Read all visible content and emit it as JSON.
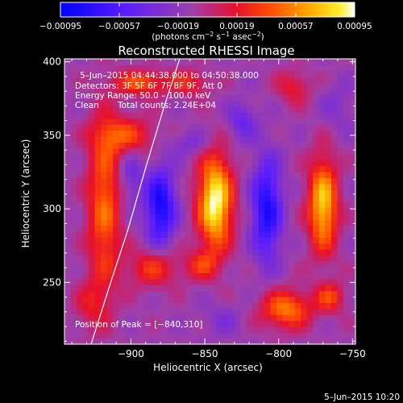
{
  "chart_data": {
    "type": "heatmap",
    "title": "Reconstructed RHESSI Image",
    "xlabel": "Heliocentric X (arcsec)",
    "ylabel": "Heliocentric Y (arcsec)",
    "xlim": [
      -945,
      -748
    ],
    "ylim": [
      208,
      402
    ],
    "x_ticks": [
      -900,
      -850,
      -800,
      -750
    ],
    "x_tick_labels": [
      "−900",
      "−850",
      "−800",
      "−750"
    ],
    "y_ticks": [
      250,
      300,
      350,
      400
    ],
    "y_tick_labels": [
      "250",
      "300",
      "350",
      "400"
    ],
    "colorbar": {
      "range": [
        -0.00095,
        0.00095
      ],
      "ticks": [
        -0.00095,
        -0.00057,
        -0.00019,
        0.00019,
        0.00057,
        0.00095
      ],
      "tick_labels": [
        "−0.00095",
        "−0.00057",
        "−0.00019",
        "0.00019",
        "0.00057",
        "0.00095"
      ],
      "unit_parts": [
        "(photons cm",
        "−2",
        " s",
        "−1",
        " asec",
        "−2",
        ")"
      ]
    },
    "annotations": {
      "time_range": "5–Jun–2015 04:44:38.000 to 04:50:38.000",
      "detectors": "Detectors: 3F 5F 6F 7F 8F 9F, Att 0",
      "energy": "Energy Range: 50.0 – 100.0 keV",
      "clean": "Clean",
      "counts": "Total counts: 2.24E+04",
      "peak": "Position of Peak = [−840,310]"
    },
    "footer_date": "5–Jun–2015 10:20",
    "limb_arc": {
      "x": [
        -927,
        -915,
        -902,
        -890,
        -878,
        -867
      ],
      "y": [
        208,
        246,
        286,
        328,
        368,
        402
      ]
    },
    "sources": [
      {
        "x": -843,
        "y": 305,
        "sx": 8,
        "sy": 22,
        "amp": 1.0
      },
      {
        "x": -770,
        "y": 303,
        "sx": 7,
        "sy": 22,
        "amp": 0.82
      },
      {
        "x": -918,
        "y": 302,
        "sx": 8,
        "sy": 40,
        "amp": 0.55
      },
      {
        "x": -904,
        "y": 350,
        "sx": 14,
        "sy": 9,
        "amp": 0.45
      },
      {
        "x": -893,
        "y": 386,
        "sx": 13,
        "sy": 6,
        "amp": 0.5
      },
      {
        "x": -860,
        "y": 386,
        "sx": 9,
        "sy": 6,
        "amp": 0.35
      },
      {
        "x": -885,
        "y": 260,
        "sx": 12,
        "sy": 9,
        "amp": 0.4
      },
      {
        "x": -852,
        "y": 262,
        "sx": 8,
        "sy": 7,
        "amp": 0.35
      },
      {
        "x": -795,
        "y": 232,
        "sx": 12,
        "sy": 9,
        "amp": 0.6
      },
      {
        "x": -765,
        "y": 240,
        "sx": 7,
        "sy": 7,
        "amp": 0.42
      },
      {
        "x": -790,
        "y": 383,
        "sx": 8,
        "sy": 8,
        "amp": 0.3
      },
      {
        "x": -927,
        "y": 235,
        "sx": 8,
        "sy": 12,
        "amp": 0.25
      },
      {
        "x": -880,
        "y": 302,
        "sx": 7,
        "sy": 18,
        "amp": -0.7
      },
      {
        "x": -808,
        "y": 300,
        "sx": 7,
        "sy": 24,
        "amp": -0.65
      },
      {
        "x": -900,
        "y": 322,
        "sx": 6,
        "sy": 14,
        "amp": -0.25
      },
      {
        "x": -860,
        "y": 345,
        "sx": 10,
        "sy": 6,
        "amp": -0.2
      },
      {
        "x": -825,
        "y": 360,
        "sx": 7,
        "sy": 9,
        "amp": -0.3
      },
      {
        "x": -760,
        "y": 370,
        "sx": 8,
        "sy": 12,
        "amp": -0.15
      },
      {
        "x": -838,
        "y": 225,
        "sx": 10,
        "sy": 8,
        "amp": -0.15
      }
    ]
  }
}
